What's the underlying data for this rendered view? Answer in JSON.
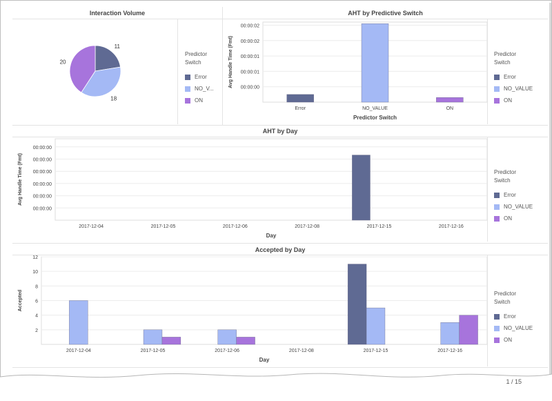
{
  "colors": {
    "Error": "#5f6a93",
    "NO_VALUE": "#a4b9f5",
    "ON": "#a774dc"
  },
  "pager": "1 / 15",
  "panels": {
    "interaction_volume": {
      "title": "Interaction Volume",
      "legend_title": [
        "Predictor",
        "Switch"
      ],
      "legend_items": [
        "Error",
        "NO_V...",
        "ON"
      ]
    },
    "aht_switch": {
      "title": "AHT by Predictive Switch",
      "legend_title": [
        "Predictor",
        "Switch"
      ],
      "legend_items": [
        "Error",
        "NO_VALUE",
        "ON"
      ]
    },
    "aht_day": {
      "title": "AHT by Day",
      "legend_title": [
        "Predictor",
        "Switch"
      ],
      "legend_items": [
        "Error",
        "NO_VALUE",
        "ON"
      ]
    },
    "accepted_day": {
      "title": "Accepted by Day",
      "legend_title": [
        "Predictor",
        "Switch"
      ],
      "legend_items": [
        "Error",
        "NO_VALUE",
        "ON"
      ]
    }
  },
  "chart_data": [
    {
      "type": "pie",
      "title": "Interaction Volume",
      "labels": [
        "Error",
        "NO_VALUE",
        "ON"
      ],
      "values": [
        11,
        18,
        20
      ]
    },
    {
      "type": "bar",
      "title": "AHT by Predictive Switch",
      "xlabel": "Predictor Switch",
      "ylabel": "Avg Handle Time (Fmt)",
      "categories": [
        "Error",
        "NO_VALUE",
        "ON"
      ],
      "values": [
        0.25,
        2.55,
        0.15
      ],
      "ylim": [
        0,
        2.6
      ],
      "tick_values": [
        0.5,
        1.0,
        1.5,
        2.0,
        2.5
      ],
      "tick_labels": [
        "00:00:00",
        "00:00:01",
        "00:00:01",
        "00:00:02",
        "00:00:02"
      ],
      "legend_position": "right"
    },
    {
      "type": "bar",
      "title": "AHT by Day",
      "xlabel": "Day",
      "ylabel": "Avg Handle Time (Fmt)",
      "categories": [
        "2017-12-04",
        "2017-12-05",
        "2017-12-06",
        "2017-12-08",
        "2017-12-15",
        "2017-12-16"
      ],
      "series": [
        {
          "name": "Error",
          "values": [
            null,
            null,
            null,
            null,
            0.16,
            null
          ]
        },
        {
          "name": "NO_VALUE",
          "values": [
            null,
            null,
            null,
            null,
            null,
            null
          ]
        },
        {
          "name": "ON",
          "values": [
            null,
            null,
            null,
            null,
            null,
            null
          ]
        }
      ],
      "ylim": [
        0,
        0.2
      ],
      "tick_values": [
        0.03,
        0.06,
        0.09,
        0.12,
        0.15,
        0.18
      ],
      "tick_labels": [
        "00:00:00",
        "00:00:00",
        "00:00:00",
        "00:00:00",
        "00:00:00",
        "00:00:00"
      ],
      "legend_position": "right"
    },
    {
      "type": "bar",
      "title": "Accepted by Day",
      "xlabel": "Day",
      "ylabel": "Accepted",
      "categories": [
        "2017-12-04",
        "2017-12-05",
        "2017-12-06",
        "2017-12-08",
        "2017-12-15",
        "2017-12-16"
      ],
      "series": [
        {
          "name": "Error",
          "values": [
            null,
            null,
            null,
            null,
            11,
            null
          ]
        },
        {
          "name": "NO_VALUE",
          "values": [
            6,
            2,
            2,
            null,
            5,
            3
          ]
        },
        {
          "name": "ON",
          "values": [
            null,
            1,
            1,
            null,
            null,
            4
          ]
        }
      ],
      "ylim": [
        0,
        12
      ],
      "tick_values": [
        2,
        4,
        6,
        8,
        10,
        12
      ],
      "tick_labels": [
        "2",
        "4",
        "6",
        "8",
        "10",
        "12"
      ],
      "legend_position": "right"
    }
  ]
}
